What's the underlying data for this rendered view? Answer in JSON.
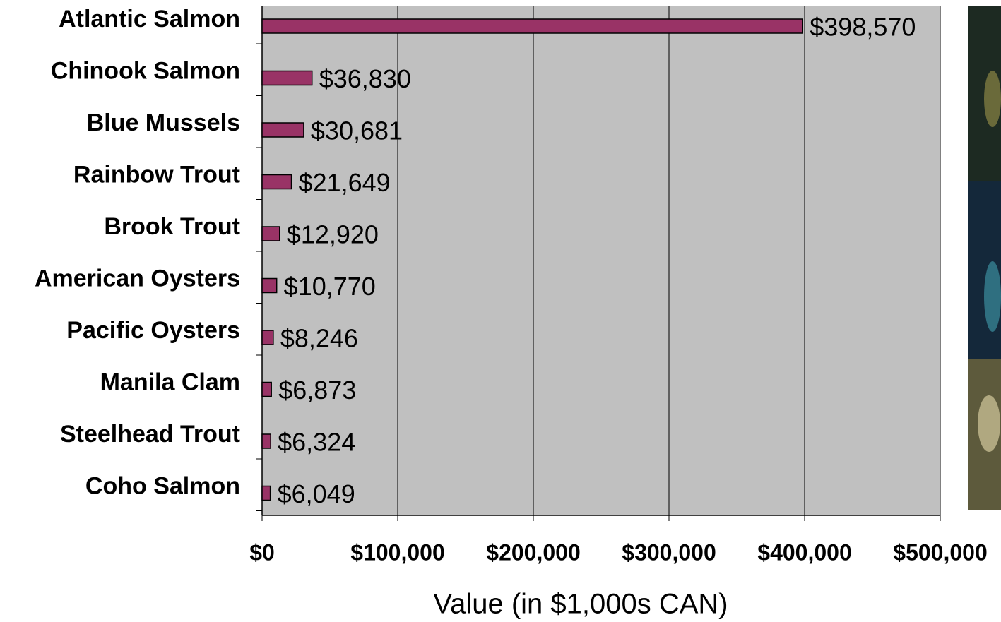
{
  "chart_data": {
    "type": "barh",
    "x_label": "Value (in $1,000s CAN)",
    "categories": [
      "Atlantic Salmon",
      "Chinook Salmon",
      "Blue Mussels",
      "Rainbow Trout",
      "Brook Trout",
      "American Oysters",
      "Pacific Oysters",
      "Manila Clam",
      "Steelhead Trout",
      "Coho Salmon"
    ],
    "values": [
      398570,
      36830,
      30681,
      21649,
      12920,
      10770,
      8246,
      6873,
      6324,
      6049
    ],
    "value_labels": [
      "$398,570",
      "$36,830",
      "$30,681",
      "$21,649",
      "$12,920",
      "$10,770",
      "$8,246",
      "$6,873",
      "$6,324",
      "$6,049"
    ],
    "color": "#993366",
    "xlim": [
      0,
      500000
    ],
    "xticks": [
      {
        "value": 0,
        "label": "$0"
      },
      {
        "value": 100000,
        "label": "$100,000"
      },
      {
        "value": 200000,
        "label": "$200,000"
      },
      {
        "value": 300000,
        "label": "$300,000"
      },
      {
        "value": 400000,
        "label": "$400,000"
      },
      {
        "value": 500000,
        "label": "$500,000"
      }
    ],
    "grid": true
  }
}
